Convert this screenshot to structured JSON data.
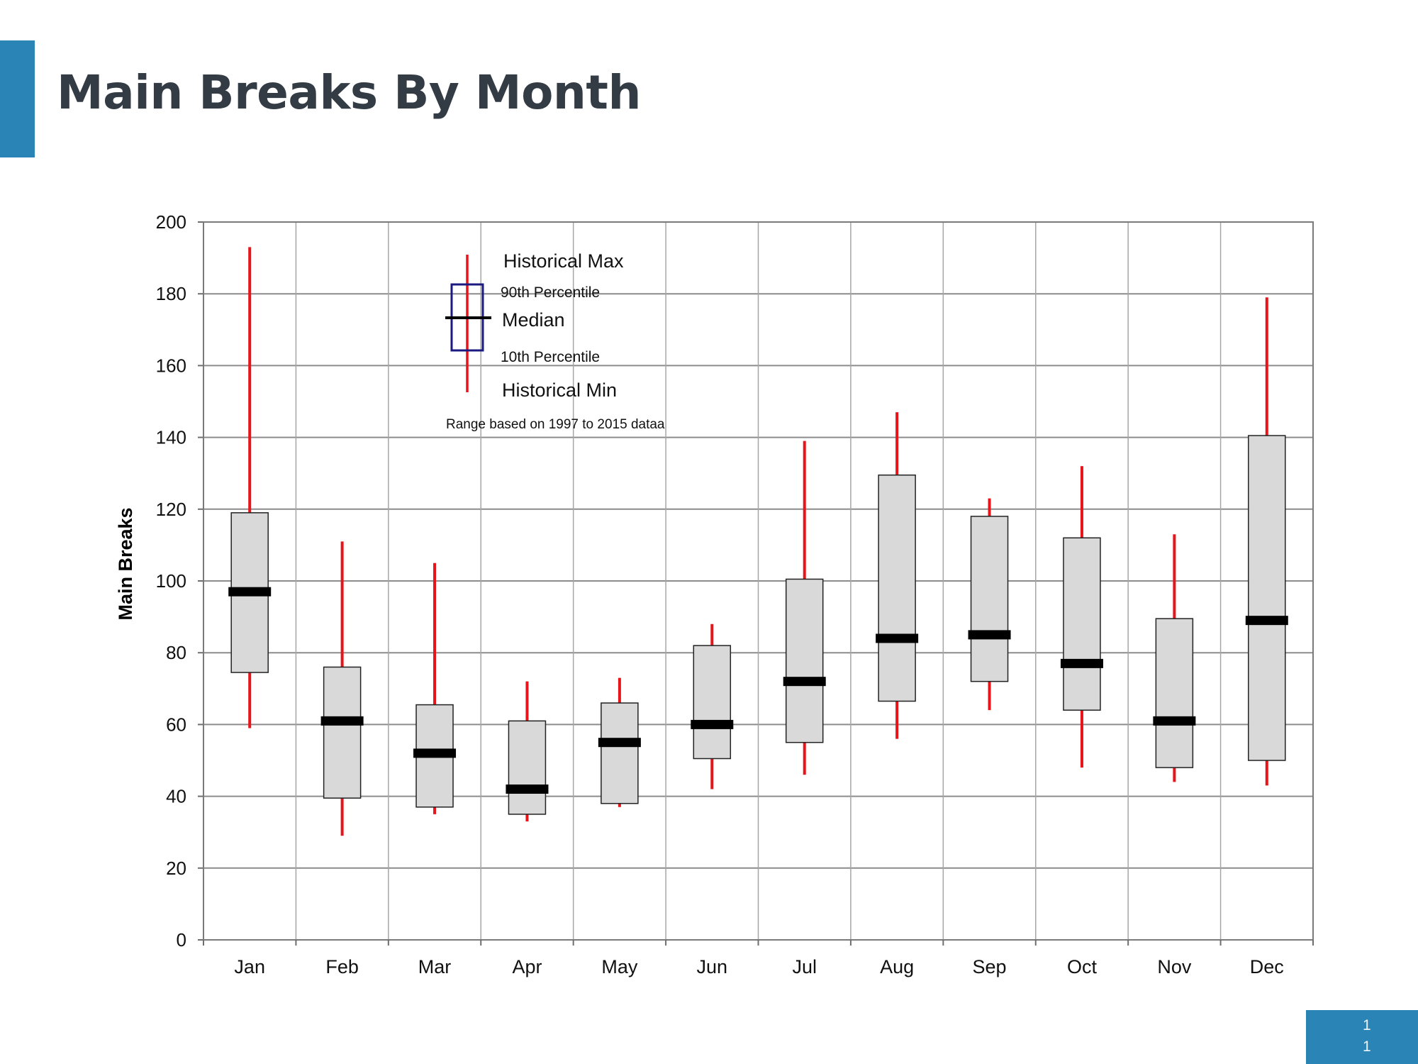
{
  "slide": {
    "title": "Main Breaks By Month",
    "page_number_lines": [
      "1",
      "1"
    ],
    "accent_color": "#2a84b5"
  },
  "chart_data": {
    "type": "boxplot",
    "title": "",
    "xlabel": "",
    "ylabel": "Main Breaks",
    "ylim": [
      0,
      200
    ],
    "yticks": [
      0,
      20,
      40,
      60,
      80,
      100,
      120,
      140,
      160,
      180,
      200
    ],
    "grid": true,
    "categories": [
      "Jan",
      "Feb",
      "Mar",
      "Apr",
      "May",
      "Jun",
      "Jul",
      "Aug",
      "Sep",
      "Oct",
      "Nov",
      "Dec"
    ],
    "historical_max": [
      193,
      111,
      105,
      72,
      73,
      88,
      139,
      147,
      123,
      132,
      113,
      179
    ],
    "p90": [
      119,
      76,
      65.5,
      61,
      66,
      82,
      100.5,
      129.5,
      118,
      112,
      89.5,
      140.5
    ],
    "median": [
      97,
      61,
      52,
      42,
      55,
      60,
      72,
      84,
      85,
      77,
      61,
      89
    ],
    "p10": [
      74.5,
      39.5,
      37,
      35,
      38,
      50.5,
      55,
      66.5,
      72,
      64,
      48,
      50
    ],
    "historical_min": [
      59,
      29,
      35,
      33,
      37,
      42,
      46,
      56,
      64,
      48,
      44,
      43
    ],
    "colors": {
      "whisker": "#e8141a",
      "box_fill": "#d9d9d9",
      "box_stroke": "#222222",
      "median": "#000000",
      "legend_box": "#1a1a80"
    },
    "legend": {
      "placement": "top-left",
      "labels": {
        "max": "Historical Max",
        "p90": "90th Percentile",
        "median": "Median",
        "p10": "10th Percentile",
        "min": "Historical Min"
      },
      "note": "Range based on 1997 to 2015 dataa"
    }
  }
}
